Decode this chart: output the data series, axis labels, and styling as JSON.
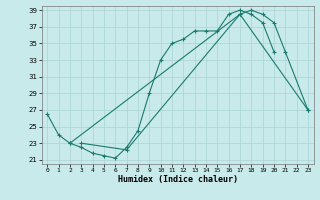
{
  "title": "",
  "xlabel": "Humidex (Indice chaleur)",
  "bg_color": "#c9eaea",
  "grid_color": "#b0d8d8",
  "line_color": "#1a7a6e",
  "xlim": [
    -0.5,
    23.5
  ],
  "ylim": [
    20.5,
    39.5
  ],
  "yticks": [
    21,
    23,
    25,
    27,
    29,
    31,
    33,
    35,
    37,
    39
  ],
  "xticks": [
    0,
    1,
    2,
    3,
    4,
    5,
    6,
    7,
    8,
    9,
    10,
    11,
    12,
    13,
    14,
    15,
    16,
    17,
    18,
    19,
    20,
    21,
    22,
    23
  ],
  "curve1_x": [
    0,
    1,
    2,
    3,
    4,
    5,
    6,
    7,
    8,
    9,
    10,
    11,
    12,
    13,
    14,
    15,
    16,
    17,
    18,
    19,
    20
  ],
  "curve1_y": [
    26.5,
    24.0,
    23.0,
    22.5,
    21.8,
    21.5,
    21.2,
    22.5,
    24.5,
    29.0,
    33.0,
    35.0,
    35.5,
    36.5,
    36.5,
    36.5,
    38.5,
    39.0,
    38.5,
    37.5,
    34.0
  ],
  "curve2_x": [
    3,
    7,
    17,
    18,
    19,
    20,
    21,
    23
  ],
  "curve2_y": [
    23.0,
    22.2,
    38.5,
    39.0,
    38.5,
    37.5,
    34.0,
    27.0
  ],
  "curve3_x": [
    2,
    17,
    23
  ],
  "curve3_y": [
    23.0,
    38.5,
    27.0
  ]
}
